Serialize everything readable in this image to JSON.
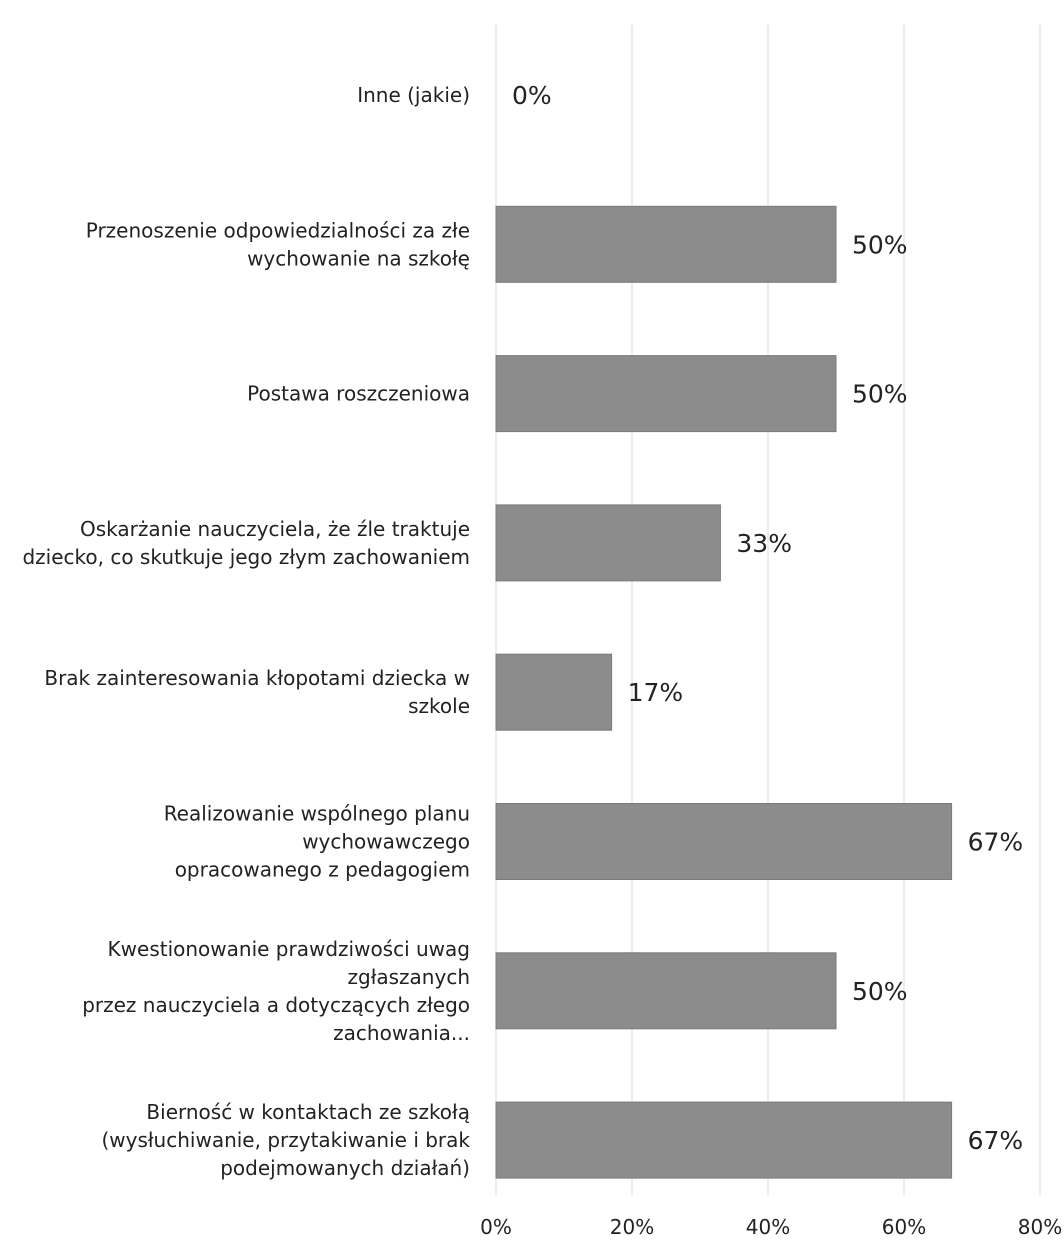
{
  "chart_data": {
    "type": "bar",
    "orientation": "horizontal",
    "categories": [
      [
        "Inne (jakie)"
      ],
      [
        "Przenoszenie odpowiedzialności za złe",
        "wychowanie na szkołę"
      ],
      [
        "Postawa roszczeniowa"
      ],
      [
        "Oskarżanie nauczyciela, że źle traktuje",
        "dziecko, co skutkuje jego złym zachowaniem"
      ],
      [
        "Brak zainteresowania kłopotami dziecka w",
        "szkole"
      ],
      [
        "Realizowanie wspólnego planu",
        "wychowawczego",
        "opracowanego z pedagogiem"
      ],
      [
        "Kwestionowanie prawdziwości uwag",
        "zgłaszanych",
        "przez nauczyciela a dotyczących złego",
        "zachowania..."
      ],
      [
        "Bierność w kontaktach ze szkołą",
        "(wysłuchiwanie, przytakiwanie i brak",
        "podejmowanych działań)"
      ]
    ],
    "values": [
      0,
      50,
      50,
      33,
      17,
      67,
      50,
      67
    ],
    "data_labels": [
      "0%",
      "50%",
      "50%",
      "33%",
      "17%",
      "67%",
      "50%",
      "67%"
    ],
    "xlim": [
      0,
      80
    ],
    "x_ticks": [
      "0%",
      "20%",
      "40%",
      "60%",
      "80%"
    ],
    "title": "",
    "xlabel": "",
    "ylabel": "",
    "grid": "vertical",
    "legend": "none",
    "bar_color": "#8c8c8c",
    "grid_color": "#d9d9d9"
  }
}
